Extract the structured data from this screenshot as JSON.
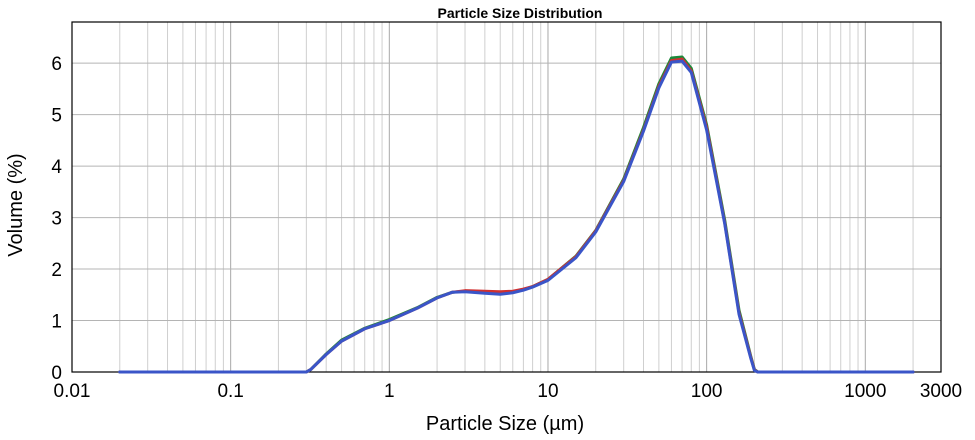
{
  "chart_data": {
    "type": "line",
    "title": "Particle Size Distribution",
    "xlabel": "Particle Size (µm)",
    "ylabel": "Volume (%)",
    "x_scale": "log",
    "xlim": [
      0.01,
      3000
    ],
    "ylim": [
      0,
      6.8
    ],
    "x_ticks": [
      {
        "value": 0.01,
        "label": "0.01"
      },
      {
        "value": 0.1,
        "label": "0.1"
      },
      {
        "value": 1,
        "label": "1"
      },
      {
        "value": 10,
        "label": "10"
      },
      {
        "value": 100,
        "label": "100"
      },
      {
        "value": 1000,
        "label": "1000"
      },
      {
        "value": 3000,
        "label": "3000"
      }
    ],
    "y_ticks": [
      {
        "value": 0,
        "label": "0"
      },
      {
        "value": 1,
        "label": "1"
      },
      {
        "value": 2,
        "label": "2"
      },
      {
        "value": 3,
        "label": "3"
      },
      {
        "value": 4,
        "label": "4"
      },
      {
        "value": 5,
        "label": "5"
      },
      {
        "value": 6,
        "label": "6"
      }
    ],
    "grid": true,
    "series": [
      {
        "color": "#1a8a3a",
        "x": [
          0.02,
          0.1,
          0.3,
          0.32,
          0.4,
          0.5,
          0.7,
          1.0,
          1.5,
          2.0,
          2.5,
          3.0,
          4.0,
          5.0,
          6.0,
          7.0,
          8.0,
          10,
          15,
          20,
          30,
          40,
          50,
          60,
          70,
          80,
          100,
          130,
          160,
          190,
          200,
          210,
          300,
          1000,
          2000
        ],
        "y": [
          0,
          0,
          0,
          0.05,
          0.35,
          0.62,
          0.85,
          1.02,
          1.25,
          1.45,
          1.55,
          1.57,
          1.54,
          1.52,
          1.55,
          1.6,
          1.66,
          1.8,
          2.25,
          2.75,
          3.75,
          4.75,
          5.6,
          6.1,
          6.12,
          5.9,
          4.8,
          2.95,
          1.2,
          0.3,
          0.05,
          0,
          0,
          0,
          0
        ]
      },
      {
        "color": "#d03030",
        "x": [
          0.02,
          0.1,
          0.3,
          0.32,
          0.4,
          0.5,
          0.7,
          1.0,
          1.5,
          2.0,
          2.5,
          3.0,
          4.0,
          5.0,
          6.0,
          7.0,
          8.0,
          10,
          15,
          20,
          30,
          40,
          50,
          60,
          70,
          80,
          100,
          130,
          160,
          190,
          200,
          210,
          300,
          1000,
          2000
        ],
        "y": [
          0,
          0,
          0,
          0.05,
          0.34,
          0.6,
          0.84,
          1.0,
          1.24,
          1.44,
          1.55,
          1.58,
          1.57,
          1.56,
          1.57,
          1.61,
          1.66,
          1.8,
          2.24,
          2.74,
          3.72,
          4.7,
          5.55,
          6.05,
          6.08,
          5.85,
          4.75,
          2.9,
          1.15,
          0.28,
          0.04,
          0,
          0,
          0,
          0
        ]
      },
      {
        "color": "#3a55c8",
        "x": [
          0.02,
          0.1,
          0.3,
          0.32,
          0.4,
          0.5,
          0.7,
          1.0,
          1.5,
          2.0,
          2.5,
          3.0,
          4.0,
          5.0,
          6.0,
          7.0,
          8.0,
          10,
          15,
          20,
          30,
          40,
          50,
          60,
          70,
          80,
          100,
          130,
          160,
          190,
          200,
          210,
          300,
          1000,
          2000
        ],
        "y": [
          0,
          0,
          0,
          0.05,
          0.34,
          0.6,
          0.84,
          1.0,
          1.24,
          1.44,
          1.55,
          1.56,
          1.53,
          1.51,
          1.54,
          1.59,
          1.65,
          1.78,
          2.22,
          2.72,
          3.7,
          4.68,
          5.52,
          6.02,
          6.04,
          5.82,
          4.7,
          2.88,
          1.12,
          0.26,
          0.03,
          0,
          0,
          0,
          0
        ]
      }
    ]
  }
}
